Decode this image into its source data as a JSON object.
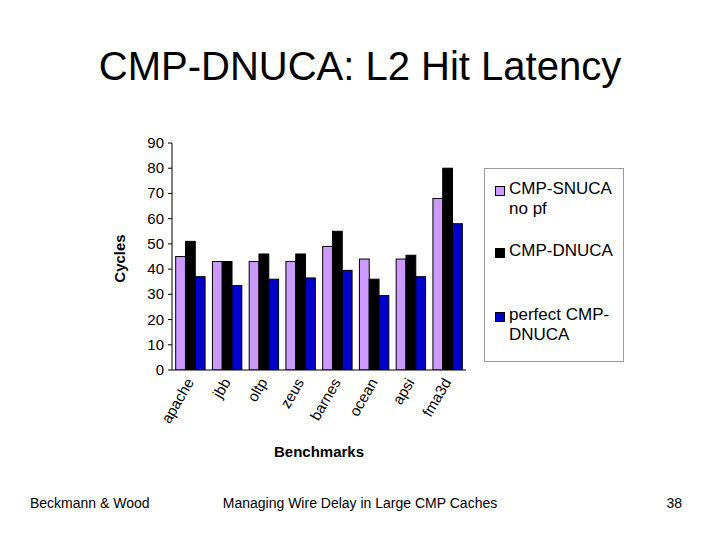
{
  "chart_data": {
    "type": "bar",
    "title": "CMP-DNUCA: L2 Hit Latency",
    "x_label": "Benchmarks",
    "y_label": "Cycles",
    "categories": [
      "apache",
      "jbb",
      "oltp",
      "zeus",
      "barnes",
      "ocean",
      "apsi",
      "fma3d"
    ],
    "series": [
      {
        "name": "CMP-SNUCA no pf",
        "color": "#cc99ff",
        "values": [
          45,
          43,
          43,
          43,
          49,
          44,
          44,
          68
        ]
      },
      {
        "name": "CMP-DNUCA",
        "color": "#000000",
        "values": [
          51,
          43,
          46,
          46,
          55,
          36,
          45.5,
          80
        ]
      },
      {
        "name": "perfect CMP-DNUCA",
        "color": "#0000cc",
        "values": [
          37,
          33.5,
          36,
          36.5,
          39.5,
          29.5,
          37,
          58
        ]
      }
    ],
    "ylim": [
      0,
      90
    ],
    "yticks": [
      0,
      10,
      20,
      30,
      40,
      50,
      60,
      70,
      80,
      90
    ],
    "grid": false,
    "legend": "right"
  },
  "footer": {
    "left": "Beckmann & Wood",
    "center": "Managing Wire Delay in Large CMP Caches",
    "page": "38"
  }
}
